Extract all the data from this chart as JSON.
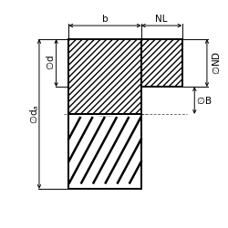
{
  "bg_color": "#ffffff",
  "line_color": "#000000",
  "fig_width": 2.5,
  "fig_height": 2.5,
  "dpi": 100,
  "GL": 0.3,
  "GR": 0.62,
  "GT": 0.83,
  "GB": 0.17,
  "GM": 0.5,
  "HL": 0.62,
  "HR": 0.8,
  "HT": 0.83,
  "HB": 0.62,
  "fontsize": 7.5,
  "lw_main": 1.4,
  "lw_dim": 0.7,
  "lw_hatch": 0.6
}
